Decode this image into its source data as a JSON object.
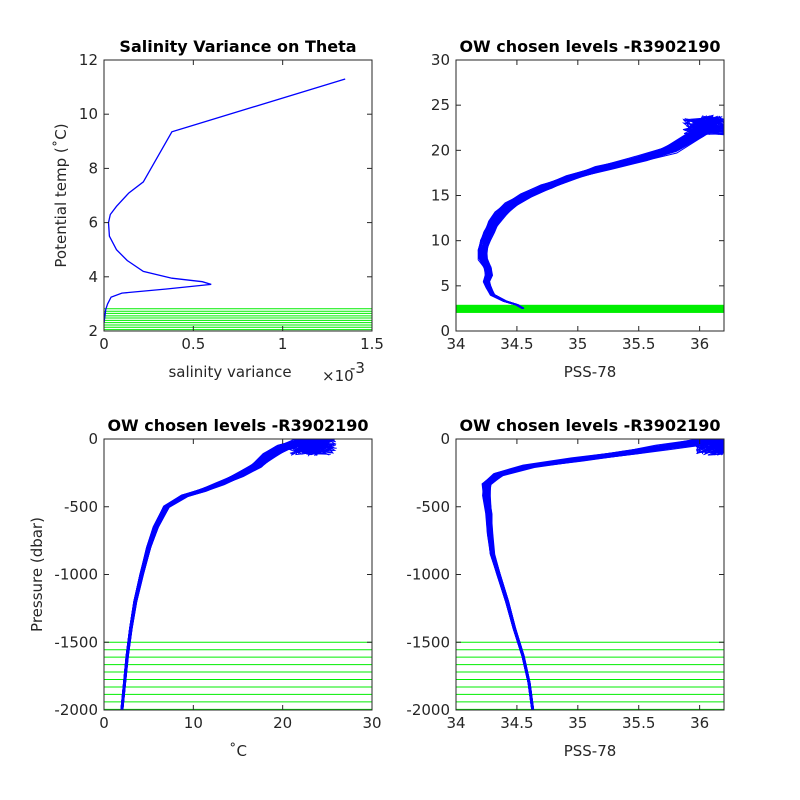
{
  "chart_data": [
    {
      "type": "line",
      "title": "Salinity Variance on Theta",
      "xlabel": "salinity variance",
      "x_exponent_label": "×10",
      "x_exponent_power": "-3",
      "ylabel": "Potential temp (˚C)",
      "xlim": [
        0,
        1.5
      ],
      "ylim": [
        2,
        12
      ],
      "xticks": [
        "0",
        "0.5",
        "1",
        "1.5"
      ],
      "yticks": [
        "2",
        "4",
        "6",
        "8",
        "10",
        "12"
      ],
      "series": [
        {
          "color": "#0000ff",
          "points": [
            [
              1.35,
              11.3
            ],
            [
              0.38,
              9.35
            ],
            [
              0.22,
              7.5
            ],
            [
              0.14,
              7.1
            ],
            [
              0.07,
              6.6
            ],
            [
              0.035,
              6.3
            ],
            [
              0.025,
              6.0
            ],
            [
              0.03,
              5.5
            ],
            [
              0.07,
              5.0
            ],
            [
              0.13,
              4.6
            ],
            [
              0.22,
              4.2
            ],
            [
              0.38,
              3.95
            ],
            [
              0.55,
              3.82
            ],
            [
              0.6,
              3.72
            ],
            [
              0.35,
              3.55
            ],
            [
              0.1,
              3.4
            ],
            [
              0.04,
              3.25
            ],
            [
              0.02,
              3.0
            ],
            [
              0.01,
              2.8
            ],
            [
              0.0,
              2.3
            ]
          ]
        }
      ],
      "chosen_levels": {
        "color": "#00ee00",
        "y": [
          2.05,
          2.14,
          2.22,
          2.31,
          2.39,
          2.48,
          2.56,
          2.65,
          2.73,
          2.82
        ]
      }
    },
    {
      "type": "line",
      "title": "OW chosen levels -R3902190",
      "xlabel": "PSS-78",
      "ylabel": "",
      "xlim": [
        34,
        36.2
      ],
      "ylim": [
        0,
        30
      ],
      "xticks": [
        "34",
        "34.5",
        "35",
        "35.5",
        "36"
      ],
      "yticks": [
        "0",
        "5",
        "10",
        "15",
        "20",
        "25",
        "30"
      ],
      "profile_color": "#0000ff",
      "profile_count": 60,
      "base_curve": [
        [
          34.55,
          2.5
        ],
        [
          34.5,
          2.9
        ],
        [
          34.4,
          3.3
        ],
        [
          34.3,
          4.0
        ],
        [
          34.27,
          4.8
        ],
        [
          34.25,
          5.5
        ],
        [
          34.27,
          6.2
        ],
        [
          34.26,
          7.0
        ],
        [
          34.22,
          8.0
        ],
        [
          34.22,
          9.0
        ],
        [
          34.24,
          10.0
        ],
        [
          34.27,
          11.0
        ],
        [
          34.31,
          12.0
        ],
        [
          34.37,
          13.0
        ],
        [
          34.45,
          14.0
        ],
        [
          34.58,
          15.0
        ],
        [
          34.75,
          16.0
        ],
        [
          34.95,
          17.0
        ],
        [
          35.2,
          18.0
        ],
        [
          35.5,
          19.0
        ],
        [
          35.75,
          20.0
        ],
        [
          35.95,
          21.5
        ],
        [
          36.05,
          22.5
        ],
        [
          36.1,
          23.5
        ]
      ],
      "chosen_band": {
        "color": "#00ee00",
        "y": [
          2.0,
          2.9
        ]
      }
    },
    {
      "type": "line",
      "title": "OW chosen levels -R3902190",
      "xlabel": "˚C",
      "ylabel": "Pressure (dbar)",
      "xlim": [
        0,
        30
      ],
      "ylim": [
        -2000,
        0
      ],
      "xticks": [
        "0",
        "10",
        "20",
        "30"
      ],
      "yticks": [
        "-2000",
        "-1500",
        "-1000",
        "-500",
        "0"
      ],
      "profile_color": "#0000ff",
      "profile_count": 60,
      "base_curve": [
        [
          2.0,
          -2000
        ],
        [
          2.3,
          -1800
        ],
        [
          2.6,
          -1600
        ],
        [
          3.0,
          -1400
        ],
        [
          3.5,
          -1200
        ],
        [
          4.2,
          -1000
        ],
        [
          5.0,
          -800
        ],
        [
          5.8,
          -650
        ],
        [
          7.0,
          -500
        ],
        [
          9.0,
          -420
        ],
        [
          11.0,
          -380
        ],
        [
          13.0,
          -330
        ],
        [
          15.0,
          -270
        ],
        [
          17.0,
          -200
        ],
        [
          18.5,
          -120
        ],
        [
          20.0,
          -60
        ],
        [
          22.0,
          -20
        ],
        [
          24.0,
          0
        ]
      ],
      "chosen_levels": {
        "color": "#00ee00",
        "y": [
          -1500,
          -1555,
          -1610,
          -1665,
          -1720,
          -1775,
          -1830,
          -1885,
          -1940,
          -1995
        ]
      }
    },
    {
      "type": "line",
      "title": "OW chosen levels -R3902190",
      "xlabel": "PSS-78",
      "ylabel": "",
      "xlim": [
        34,
        36.2
      ],
      "ylim": [
        -2000,
        0
      ],
      "xticks": [
        "34",
        "34.5",
        "35",
        "35.5",
        "36"
      ],
      "yticks": [
        "-2000",
        "-1500",
        "-1000",
        "-500",
        "0"
      ],
      "profile_color": "#0000ff",
      "profile_count": 60,
      "base_curve": [
        [
          34.63,
          -2000
        ],
        [
          34.6,
          -1800
        ],
        [
          34.55,
          -1600
        ],
        [
          34.48,
          -1400
        ],
        [
          34.42,
          -1200
        ],
        [
          34.35,
          -1000
        ],
        [
          34.3,
          -850
        ],
        [
          34.28,
          -700
        ],
        [
          34.27,
          -550
        ],
        [
          34.25,
          -420
        ],
        [
          34.25,
          -330
        ],
        [
          34.35,
          -260
        ],
        [
          34.6,
          -200
        ],
        [
          35.0,
          -150
        ],
        [
          35.4,
          -100
        ],
        [
          35.7,
          -60
        ],
        [
          36.0,
          -20
        ],
        [
          36.2,
          0
        ]
      ],
      "chosen_levels": {
        "color": "#00ee00",
        "y": [
          -1500,
          -1555,
          -1610,
          -1665,
          -1720,
          -1775,
          -1830,
          -1885,
          -1940,
          -1995
        ]
      }
    }
  ]
}
